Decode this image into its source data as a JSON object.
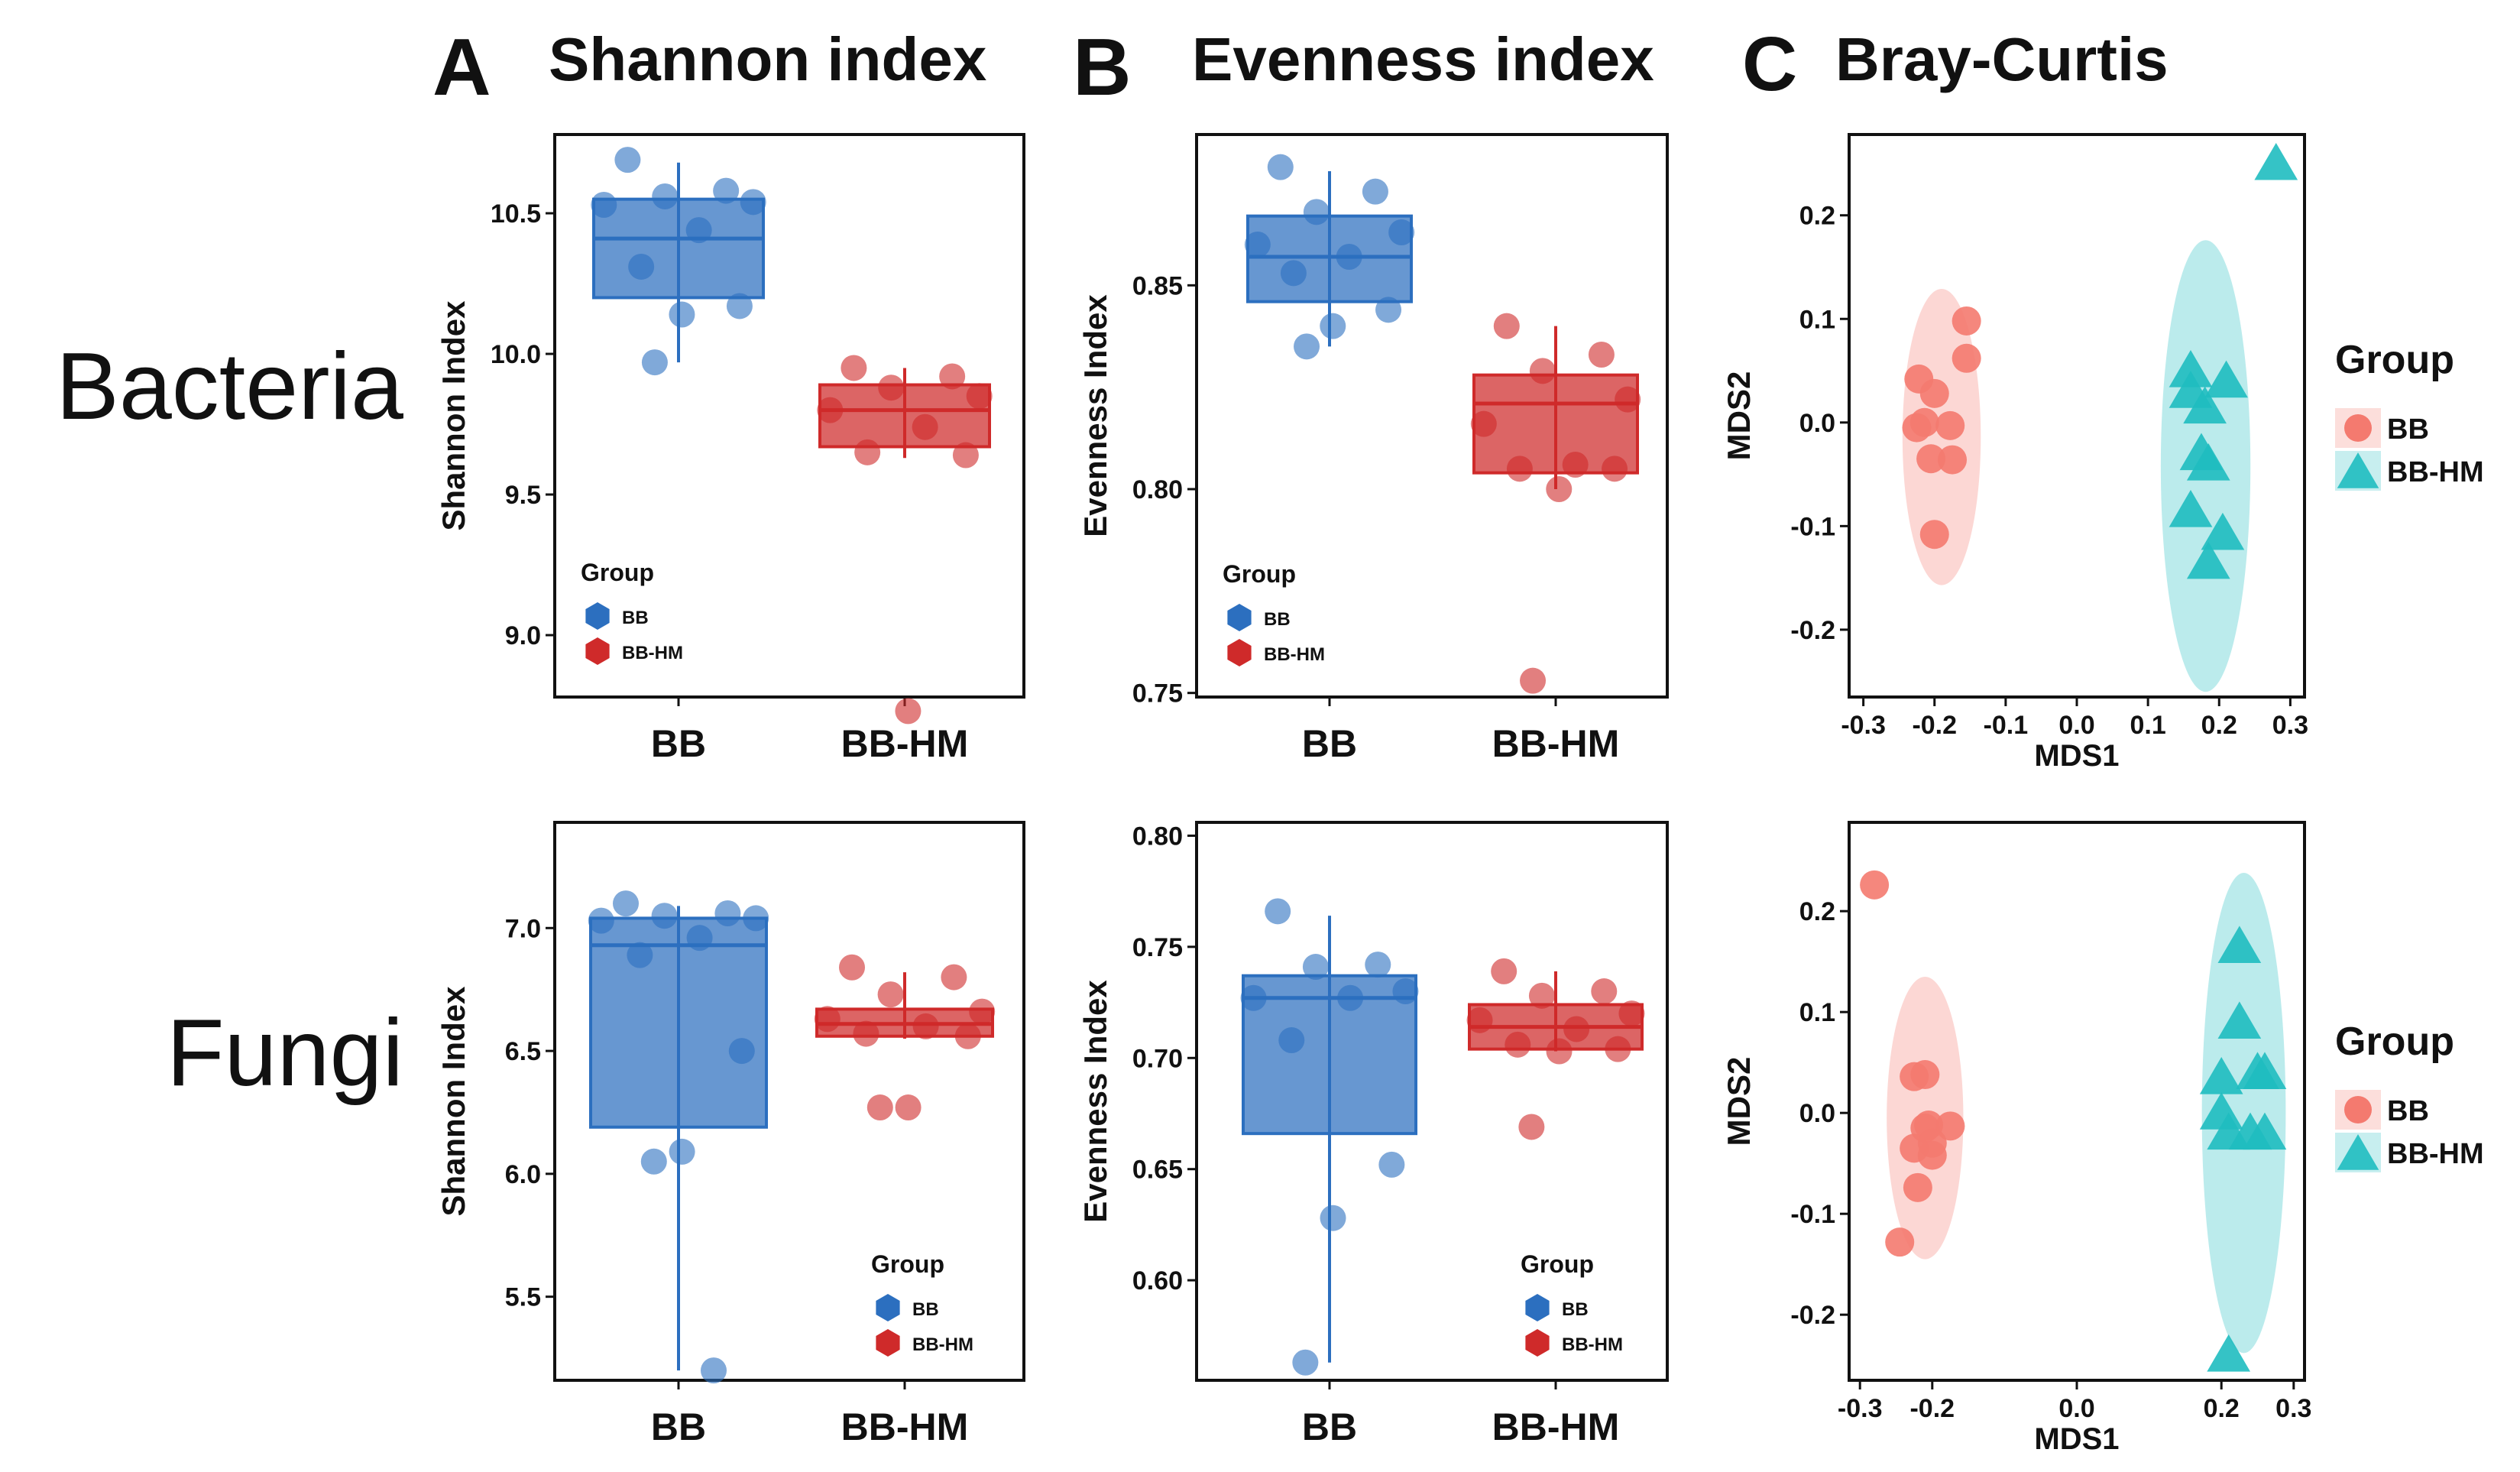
{
  "row_labels": [
    "Bacteria",
    "Fungi"
  ],
  "column_headers": [
    {
      "letter": "A",
      "title": "Shannon index"
    },
    {
      "letter": "B",
      "title": "Evenness index"
    },
    {
      "letter": "C",
      "title": "Bray-Curtis"
    }
  ],
  "colors": {
    "BB_box": "#2c6fbf",
    "BB_HM_box": "#cf2a2a",
    "BB_ord": "#f47a6f",
    "BB_HM_ord": "#1fbcc0"
  },
  "chart_data": [
    {
      "id": "bacteria-shannon",
      "type": "box",
      "title": "Shannon index",
      "ylabel": "Shannon Index",
      "ylim": [
        8.78,
        10.78
      ],
      "yticks": [
        9.0,
        9.5,
        10.0,
        10.5
      ],
      "ytick_labels": [
        "9.0",
        "9.5",
        "10.0",
        "10.5"
      ],
      "categories": [
        "BB",
        "BB-HM"
      ],
      "legend": {
        "title": "Group",
        "entries": [
          "BB",
          "BB-HM"
        ],
        "position": "bottom-left"
      },
      "series": [
        {
          "name": "BB",
          "q1": 10.2,
          "median": 10.41,
          "q3": 10.55,
          "whisker_low": 9.97,
          "whisker_high": 10.68,
          "points": [
            10.69,
            10.58,
            10.56,
            10.54,
            10.53,
            10.44,
            10.31,
            10.17,
            10.14,
            9.97
          ]
        },
        {
          "name": "BB-HM",
          "q1": 9.67,
          "median": 9.8,
          "q3": 9.89,
          "whisker_low": 9.63,
          "whisker_high": 9.95,
          "points": [
            9.95,
            9.92,
            9.88,
            9.85,
            9.8,
            9.74,
            9.65,
            9.64,
            8.73
          ]
        }
      ]
    },
    {
      "id": "bacteria-evenness",
      "type": "box",
      "title": "Evenness index",
      "ylabel": "Evenness Index",
      "ylim": [
        0.749,
        0.887
      ],
      "yticks": [
        0.75,
        0.8,
        0.85
      ],
      "ytick_labels": [
        "0.75",
        "0.80",
        "0.85"
      ],
      "categories": [
        "BB",
        "BB-HM"
      ],
      "legend": {
        "title": "Group",
        "entries": [
          "BB",
          "BB-HM"
        ],
        "position": "bottom-left"
      },
      "series": [
        {
          "name": "BB",
          "q1": 0.846,
          "median": 0.857,
          "q3": 0.867,
          "whisker_low": 0.835,
          "whisker_high": 0.878,
          "points": [
            0.879,
            0.873,
            0.868,
            0.863,
            0.86,
            0.857,
            0.853,
            0.844,
            0.84,
            0.835
          ]
        },
        {
          "name": "BB-HM",
          "q1": 0.804,
          "median": 0.821,
          "q3": 0.828,
          "whisker_low": 0.8,
          "whisker_high": 0.84,
          "points": [
            0.84,
            0.833,
            0.829,
            0.822,
            0.816,
            0.806,
            0.805,
            0.805,
            0.8,
            0.753
          ]
        }
      ]
    },
    {
      "id": "bacteria-braycurtis",
      "type": "scatter",
      "title": "Bray-Curtis",
      "xlabel": "MDS1",
      "ylabel": "MDS2",
      "xlim": [
        -0.32,
        0.32
      ],
      "ylim": [
        -0.265,
        0.278
      ],
      "xticks": [
        -0.3,
        -0.2,
        -0.1,
        0.0,
        0.1,
        0.2,
        0.3
      ],
      "xtick_labels": [
        "-0.3",
        "-0.2",
        "-0.1",
        "0.0",
        "0.1",
        "0.2",
        "0.3"
      ],
      "yticks": [
        -0.2,
        -0.1,
        0.0,
        0.1,
        0.2
      ],
      "ytick_labels": [
        "-0.2",
        "-0.1",
        "0.0",
        "0.1",
        "0.2"
      ],
      "legend": {
        "title": "Group",
        "entries": [
          "BB",
          "BB-HM"
        ],
        "position": "right"
      },
      "series": [
        {
          "name": "BB",
          "marker": "circle",
          "x": [
            -0.155,
            -0.155,
            -0.222,
            -0.2,
            -0.214,
            -0.178,
            -0.225,
            -0.205,
            -0.175,
            -0.2
          ],
          "y": [
            0.098,
            0.062,
            0.042,
            0.028,
            0.0,
            -0.003,
            -0.005,
            -0.035,
            -0.036,
            -0.108
          ],
          "ellipse": {
            "cx": -0.19,
            "cy": -0.014,
            "rx": 0.055,
            "ry": 0.143
          }
        },
        {
          "name": "BB-HM",
          "marker": "triangle",
          "x": [
            0.28,
            0.16,
            0.21,
            0.16,
            0.18,
            0.175,
            0.185,
            0.16,
            0.205,
            0.185
          ],
          "y": [
            0.25,
            0.05,
            0.04,
            0.03,
            0.015,
            -0.03,
            -0.04,
            -0.085,
            -0.107,
            -0.135
          ],
          "ellipse": {
            "cx": 0.181,
            "cy": -0.042,
            "rx": 0.063,
            "ry": 0.218
          }
        }
      ]
    },
    {
      "id": "fungi-shannon",
      "type": "box",
      "title": "Shannon index",
      "ylabel": "Shannon Index",
      "ylim": [
        5.16,
        7.43
      ],
      "yticks": [
        5.5,
        6.0,
        6.5,
        7.0
      ],
      "ytick_labels": [
        "5.5",
        "6.0",
        "6.5",
        "7.0"
      ],
      "categories": [
        "BB",
        "BB-HM"
      ],
      "legend": {
        "title": "Group",
        "entries": [
          "BB",
          "BB-HM"
        ],
        "position": "bottom-right"
      },
      "series": [
        {
          "name": "BB",
          "q1": 6.19,
          "median": 6.93,
          "q3": 7.04,
          "whisker_low": 5.2,
          "whisker_high": 7.09,
          "points": [
            7.1,
            7.06,
            7.05,
            7.04,
            7.03,
            6.96,
            6.89,
            6.5,
            6.09,
            6.05,
            5.2
          ]
        },
        {
          "name": "BB-HM",
          "q1": 6.56,
          "median": 6.61,
          "q3": 6.67,
          "whisker_low": 6.55,
          "whisker_high": 6.82,
          "points": [
            6.84,
            6.8,
            6.73,
            6.66,
            6.63,
            6.6,
            6.57,
            6.56,
            6.27,
            6.27
          ]
        }
      ]
    },
    {
      "id": "fungi-evenness",
      "type": "box",
      "title": "Evenness index",
      "ylabel": "Evenness Index",
      "ylim": [
        0.555,
        0.806
      ],
      "yticks": [
        0.6,
        0.65,
        0.7,
        0.75,
        0.8
      ],
      "ytick_labels": [
        "0.60",
        "0.65",
        "0.70",
        "0.75",
        "0.80"
      ],
      "categories": [
        "BB",
        "BB-HM"
      ],
      "legend": {
        "title": "Group",
        "entries": [
          "BB",
          "BB-HM"
        ],
        "position": "bottom-right"
      },
      "series": [
        {
          "name": "BB",
          "q1": 0.666,
          "median": 0.727,
          "q3": 0.737,
          "whisker_low": 0.563,
          "whisker_high": 0.764,
          "points": [
            0.766,
            0.742,
            0.741,
            0.73,
            0.727,
            0.727,
            0.708,
            0.652,
            0.628,
            0.563
          ]
        },
        {
          "name": "BB-HM",
          "q1": 0.704,
          "median": 0.714,
          "q3": 0.724,
          "whisker_low": 0.703,
          "whisker_high": 0.739,
          "points": [
            0.739,
            0.73,
            0.728,
            0.72,
            0.717,
            0.713,
            0.706,
            0.704,
            0.703,
            0.669
          ]
        }
      ]
    },
    {
      "id": "fungi-braycurtis",
      "type": "scatter",
      "title": "Bray-Curtis",
      "xlabel": "MDS1",
      "ylabel": "MDS2",
      "xlim": [
        -0.315,
        0.315
      ],
      "ylim": [
        -0.265,
        0.288
      ],
      "xticks": [
        -0.3,
        -0.2,
        0.0,
        0.2,
        0.3
      ],
      "xtick_labels": [
        "-0.3",
        "-0.2",
        "0.0",
        "0.2",
        "0.3"
      ],
      "yticks": [
        -0.2,
        -0.1,
        0.0,
        0.1,
        0.2
      ],
      "ytick_labels": [
        "-0.2",
        "-0.1",
        "0.0",
        "0.1",
        "0.2"
      ],
      "legend": {
        "title": "Group",
        "entries": [
          "BB",
          "BB-HM"
        ],
        "position": "right"
      },
      "series": [
        {
          "name": "BB",
          "marker": "circle",
          "x": [
            -0.28,
            -0.21,
            -0.225,
            -0.205,
            -0.175,
            -0.21,
            -0.2,
            -0.225,
            -0.2,
            -0.22,
            -0.245
          ],
          "y": [
            0.226,
            0.038,
            0.036,
            -0.012,
            -0.013,
            -0.015,
            -0.03,
            -0.035,
            -0.042,
            -0.074,
            -0.128
          ],
          "ellipse": {
            "cx": -0.21,
            "cy": -0.005,
            "rx": 0.053,
            "ry": 0.14
          }
        },
        {
          "name": "BB-HM",
          "marker": "triangle",
          "x": [
            0.225,
            0.225,
            0.25,
            0.26,
            0.2,
            0.2,
            0.21,
            0.24,
            0.26,
            0.21
          ],
          "y": [
            0.165,
            0.09,
            0.04,
            0.04,
            0.035,
            0.0,
            -0.02,
            -0.02,
            -0.02,
            -0.24
          ],
          "ellipse": {
            "cx": 0.231,
            "cy": 0.0,
            "rx": 0.058,
            "ry": 0.238
          }
        }
      ]
    }
  ]
}
